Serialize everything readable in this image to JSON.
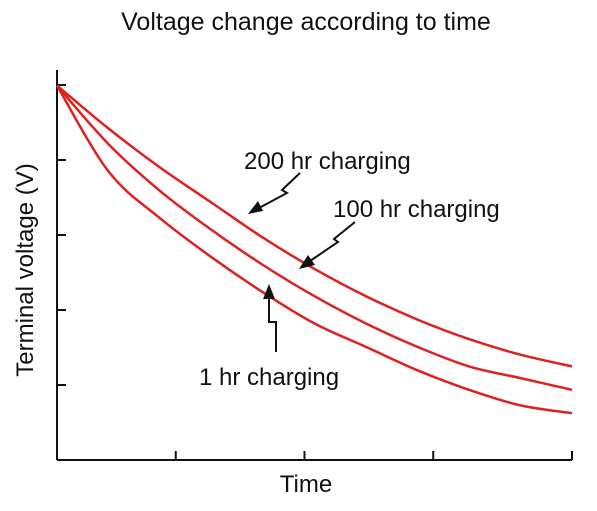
{
  "chart_data": {
    "type": "line",
    "title": "Voltage change according to time",
    "xlabel": "Time",
    "ylabel": "Terminal voltage (V)",
    "xlim": [
      0,
      1
    ],
    "ylim": [
      0,
      1
    ],
    "grid": false,
    "x_ticks_count": 4,
    "y_ticks_count": 5,
    "series": [
      {
        "name": "200 hr charging",
        "color": "#e02020",
        "x": [
          0,
          0.1,
          0.2,
          0.3,
          0.4,
          0.5,
          0.6,
          0.7,
          0.8,
          0.9,
          1.0
        ],
        "y": [
          0.96,
          0.85,
          0.75,
          0.66,
          0.57,
          0.49,
          0.42,
          0.36,
          0.31,
          0.27,
          0.24
        ]
      },
      {
        "name": "100 hr charging",
        "color": "#e02020",
        "x": [
          0,
          0.1,
          0.2,
          0.3,
          0.4,
          0.5,
          0.6,
          0.7,
          0.8,
          0.9,
          1.0
        ],
        "y": [
          0.96,
          0.81,
          0.69,
          0.59,
          0.5,
          0.42,
          0.35,
          0.29,
          0.24,
          0.21,
          0.18
        ]
      },
      {
        "name": "1 hr charging",
        "color": "#e02020",
        "x": [
          0,
          0.1,
          0.2,
          0.3,
          0.4,
          0.5,
          0.6,
          0.7,
          0.8,
          0.9,
          1.0
        ],
        "y": [
          0.96,
          0.74,
          0.62,
          0.52,
          0.43,
          0.35,
          0.29,
          0.23,
          0.18,
          0.14,
          0.12
        ]
      }
    ]
  }
}
